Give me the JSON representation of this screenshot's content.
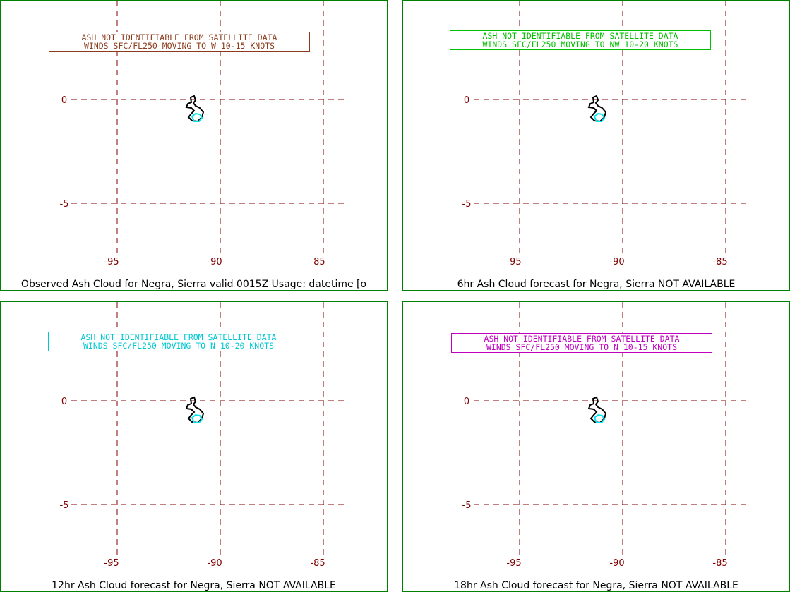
{
  "grid_color": "#800000",
  "border_color": "#008000",
  "island_color": "#000000",
  "ash_outline_color": "#00e5ee",
  "panels": [
    {
      "caption": "Observed Ash Cloud for Negra,  Sierra valid 0015Z Usage: datetime [o",
      "notice": {
        "line1": "ASH NOT IDENTIFIABLE FROM SATELLITE DATA",
        "line2": "WINDS SFC/FL250 MOVING TO W 10-15 KNOTS",
        "color": "#8b3a1a"
      },
      "lat_labels": [
        "0",
        "-5"
      ],
      "lon_labels": [
        "-95",
        "-90",
        "-85"
      ]
    },
    {
      "caption": "6hr Ash Cloud forecast for Negra,  Sierra NOT AVAILABLE",
      "notice": {
        "line1": "ASH NOT IDENTIFIABLE FROM SATELLITE DATA",
        "line2": "WINDS SFC/FL250 MOVING TO NW 10-20 KNOTS",
        "color": "#00c000"
      },
      "lat_labels": [
        "0",
        "-5"
      ],
      "lon_labels": [
        "-95",
        "-90",
        "-85"
      ]
    },
    {
      "caption": "12hr Ash Cloud forecast for Negra,  Sierra NOT AVAILABLE",
      "notice": {
        "line1": "ASH NOT IDENTIFIABLE FROM SATELLITE DATA",
        "line2": "WINDS SFC/FL250 MOVING TO N 10-20 KNOTS",
        "color": "#00c8d2"
      },
      "lat_labels": [
        "0",
        "-5"
      ],
      "lon_labels": [
        "-95",
        "-90",
        "-85"
      ]
    },
    {
      "caption": "18hr Ash Cloud forecast for Negra,  Sierra NOT AVAILABLE",
      "notice": {
        "line1": "ASH NOT IDENTIFIABLE FROM SATELLITE DATA",
        "line2": "WINDS SFC/FL250 MOVING TO N 10-15 KNOTS",
        "color": "#c000c0"
      },
      "lat_labels": [
        "0",
        "-5"
      ],
      "lon_labels": [
        "-95",
        "-90",
        "-85"
      ]
    }
  ]
}
